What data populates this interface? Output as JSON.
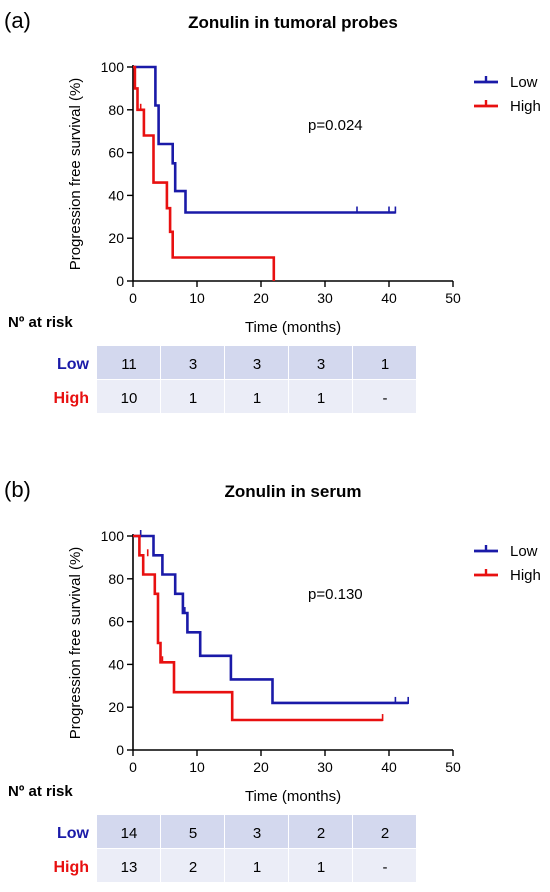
{
  "chart_data": [
    {
      "type": "line",
      "step": "km-survival",
      "panel_label": "(a)",
      "title": "Zonulin in tumoral probes",
      "xlabel": "Time (months)",
      "ylabel": "Progression free survival (%)",
      "xlim": [
        0,
        50
      ],
      "ylim": [
        0,
        100
      ],
      "xticks": [
        0,
        10,
        20,
        30,
        40,
        50
      ],
      "yticks": [
        0,
        20,
        40,
        60,
        80,
        100
      ],
      "pvalue_text": "p=0.024",
      "legend_position": "top-right",
      "series": [
        {
          "name": "Low",
          "color": "#1a1aa8",
          "points": [
            [
              0,
              100
            ],
            [
              3.5,
              100
            ],
            [
              3.5,
              82
            ],
            [
              4,
              82
            ],
            [
              4,
              64
            ],
            [
              6.2,
              64
            ],
            [
              6.2,
              55
            ],
            [
              6.6,
              55
            ],
            [
              6.6,
              42
            ],
            [
              8.2,
              42
            ],
            [
              8.2,
              32
            ],
            [
              41,
              32
            ]
          ],
          "censor": [
            [
              4,
              70
            ],
            [
              6.6,
              50
            ],
            [
              35,
              32
            ],
            [
              40,
              32
            ],
            [
              41,
              32
            ]
          ]
        },
        {
          "name": "High",
          "color": "#e81010",
          "points": [
            [
              0,
              100
            ],
            [
              0.3,
              100
            ],
            [
              0.3,
              90
            ],
            [
              0.7,
              90
            ],
            [
              0.7,
              80
            ],
            [
              1.7,
              80
            ],
            [
              1.7,
              68
            ],
            [
              3.2,
              68
            ],
            [
              3.2,
              46
            ],
            [
              5.3,
              46
            ],
            [
              5.3,
              34
            ],
            [
              5.8,
              34
            ],
            [
              5.8,
              23
            ],
            [
              6.2,
              23
            ],
            [
              6.2,
              11
            ],
            [
              22,
              11
            ],
            [
              22,
              0
            ]
          ],
          "censor": [
            [
              1.2,
              80
            ]
          ]
        }
      ],
      "risk_table": {
        "header": "Nº at risk",
        "rows": [
          {
            "label": "Low",
            "color": "#1a1aa8",
            "values": [
              "11",
              "3",
              "3",
              "3",
              "1"
            ]
          },
          {
            "label": "High",
            "color": "#e81010",
            "values": [
              "10",
              "1",
              "1",
              "1",
              "-"
            ]
          }
        ]
      }
    },
    {
      "type": "line",
      "step": "km-survival",
      "panel_label": "(b)",
      "title": "Zonulin in serum",
      "xlabel": "Time (months)",
      "ylabel": "Progression free survival (%)",
      "xlim": [
        0,
        50
      ],
      "ylim": [
        0,
        100
      ],
      "xticks": [
        0,
        10,
        20,
        30,
        40,
        50
      ],
      "yticks": [
        0,
        20,
        40,
        60,
        80,
        100
      ],
      "pvalue_text": "p=0.130",
      "legend_position": "top-right",
      "series": [
        {
          "name": "Low",
          "color": "#1a1aa8",
          "points": [
            [
              0,
              100
            ],
            [
              3.2,
              100
            ],
            [
              3.2,
              91
            ],
            [
              4.6,
              91
            ],
            [
              4.6,
              82
            ],
            [
              6.6,
              82
            ],
            [
              6.6,
              73
            ],
            [
              7.8,
              73
            ],
            [
              7.8,
              64
            ],
            [
              8.5,
              64
            ],
            [
              8.5,
              55
            ],
            [
              10.5,
              55
            ],
            [
              10.5,
              44
            ],
            [
              15.3,
              44
            ],
            [
              15.3,
              33
            ],
            [
              21.8,
              33
            ],
            [
              21.8,
              22
            ],
            [
              43,
              22
            ]
          ],
          "censor": [
            [
              1.2,
              100
            ],
            [
              8.1,
              64
            ],
            [
              41,
              22
            ],
            [
              43,
              22
            ]
          ]
        },
        {
          "name": "High",
          "color": "#e81010",
          "points": [
            [
              0,
              100
            ],
            [
              1,
              100
            ],
            [
              1,
              91
            ],
            [
              1.6,
              91
            ],
            [
              1.6,
              82
            ],
            [
              3.4,
              82
            ],
            [
              3.4,
              73
            ],
            [
              3.9,
              73
            ],
            [
              3.9,
              50
            ],
            [
              4.3,
              50
            ],
            [
              4.3,
              41
            ],
            [
              6.4,
              41
            ],
            [
              6.4,
              27
            ],
            [
              15.5,
              27
            ],
            [
              15.5,
              14
            ],
            [
              39,
              14
            ]
          ],
          "censor": [
            [
              2.3,
              91
            ],
            [
              4.6,
              41
            ],
            [
              39,
              14
            ]
          ]
        }
      ],
      "risk_table": {
        "header": "Nº at risk",
        "rows": [
          {
            "label": "Low",
            "color": "#1a1aa8",
            "values": [
              "14",
              "5",
              "3",
              "2",
              "2"
            ]
          },
          {
            "label": "High",
            "color": "#e81010",
            "values": [
              "13",
              "2",
              "1",
              "1",
              "-"
            ]
          }
        ]
      }
    }
  ]
}
